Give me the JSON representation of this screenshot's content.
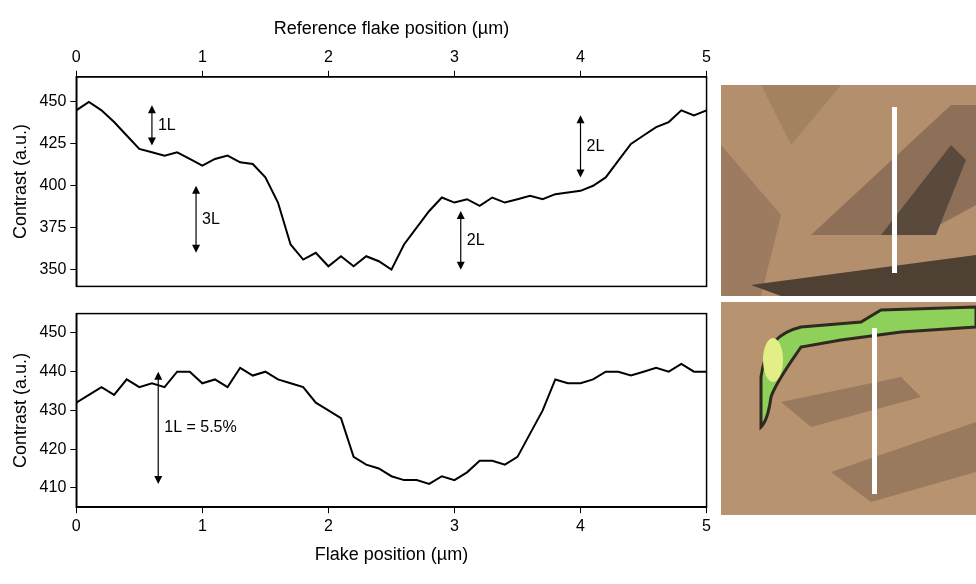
{
  "chart_data": [
    {
      "type": "line",
      "x_label": "Reference flake position (µm)",
      "y_label": "Contrast (a.u.)",
      "color": "#000000",
      "grid": false,
      "xlim": [
        0,
        5
      ],
      "xticks": [
        0,
        1,
        2,
        3,
        4,
        5
      ],
      "ylim": [
        340,
        465
      ],
      "yticks": [
        350,
        375,
        400,
        425,
        450
      ],
      "x": [
        0,
        0.1,
        0.2,
        0.3,
        0.4,
        0.5,
        0.6,
        0.7,
        0.8,
        0.9,
        1.0,
        1.1,
        1.2,
        1.3,
        1.4,
        1.5,
        1.6,
        1.7,
        1.8,
        1.9,
        2.0,
        2.1,
        2.2,
        2.3,
        2.4,
        2.5,
        2.6,
        2.7,
        2.8,
        2.9,
        3.0,
        3.1,
        3.2,
        3.3,
        3.4,
        3.5,
        3.6,
        3.7,
        3.8,
        3.9,
        4.0,
        4.1,
        4.2,
        4.3,
        4.4,
        4.5,
        4.6,
        4.7,
        4.8,
        4.9,
        5.0
      ],
      "values": [
        445,
        450,
        445,
        438,
        430,
        422,
        420,
        418,
        420,
        416,
        412,
        416,
        418,
        414,
        413,
        405,
        390,
        365,
        356,
        360,
        352,
        358,
        352,
        358,
        355,
        350,
        365,
        375,
        385,
        393,
        390,
        392,
        388,
        393,
        390,
        392,
        394,
        392,
        395,
        396,
        397,
        400,
        405,
        415,
        425,
        430,
        435,
        438,
        445,
        442,
        445
      ],
      "annotations": [
        {
          "text": "1L",
          "x": 0.6,
          "y_from": 424,
          "y_to": 448
        },
        {
          "text": "3L",
          "x": 0.95,
          "y_from": 360,
          "y_to": 400
        },
        {
          "text": "2L",
          "x": 3.05,
          "y_from": 350,
          "y_to": 385
        },
        {
          "text": "2L",
          "x": 4.0,
          "y_from": 405,
          "y_to": 442
        }
      ]
    },
    {
      "type": "line",
      "x_label": "Flake position (µm)",
      "y_label": "Contrast (a.u.)",
      "color": "#000000",
      "grid": false,
      "xlim": [
        0,
        5
      ],
      "xticks": [
        0,
        1,
        2,
        3,
        4,
        5
      ],
      "ylim": [
        405,
        455
      ],
      "yticks": [
        410,
        420,
        430,
        440,
        450
      ],
      "x": [
        0,
        0.1,
        0.2,
        0.3,
        0.4,
        0.5,
        0.6,
        0.7,
        0.8,
        0.9,
        1.0,
        1.1,
        1.2,
        1.3,
        1.4,
        1.5,
        1.6,
        1.7,
        1.8,
        1.9,
        2.0,
        2.1,
        2.2,
        2.3,
        2.4,
        2.5,
        2.6,
        2.7,
        2.8,
        2.9,
        3.0,
        3.1,
        3.2,
        3.3,
        3.4,
        3.5,
        3.6,
        3.7,
        3.8,
        3.9,
        4.0,
        4.1,
        4.2,
        4.3,
        4.4,
        4.5,
        4.6,
        4.7,
        4.8,
        4.9,
        5.0
      ],
      "values": [
        432,
        434,
        436,
        434,
        438,
        436,
        437,
        436,
        440,
        440,
        437,
        438,
        436,
        441,
        439,
        440,
        438,
        437,
        436,
        432,
        430,
        428,
        418,
        416,
        415,
        413,
        412,
        412,
        411,
        413,
        412,
        414,
        417,
        417,
        416,
        418,
        424,
        430,
        438,
        437,
        437,
        438,
        440,
        440,
        439,
        440,
        441,
        440,
        442,
        440,
        440
      ],
      "annotations": [
        {
          "text": "1L = 5.5%",
          "x": 0.65,
          "y_from": 411,
          "y_to": 440
        }
      ]
    }
  ]
}
